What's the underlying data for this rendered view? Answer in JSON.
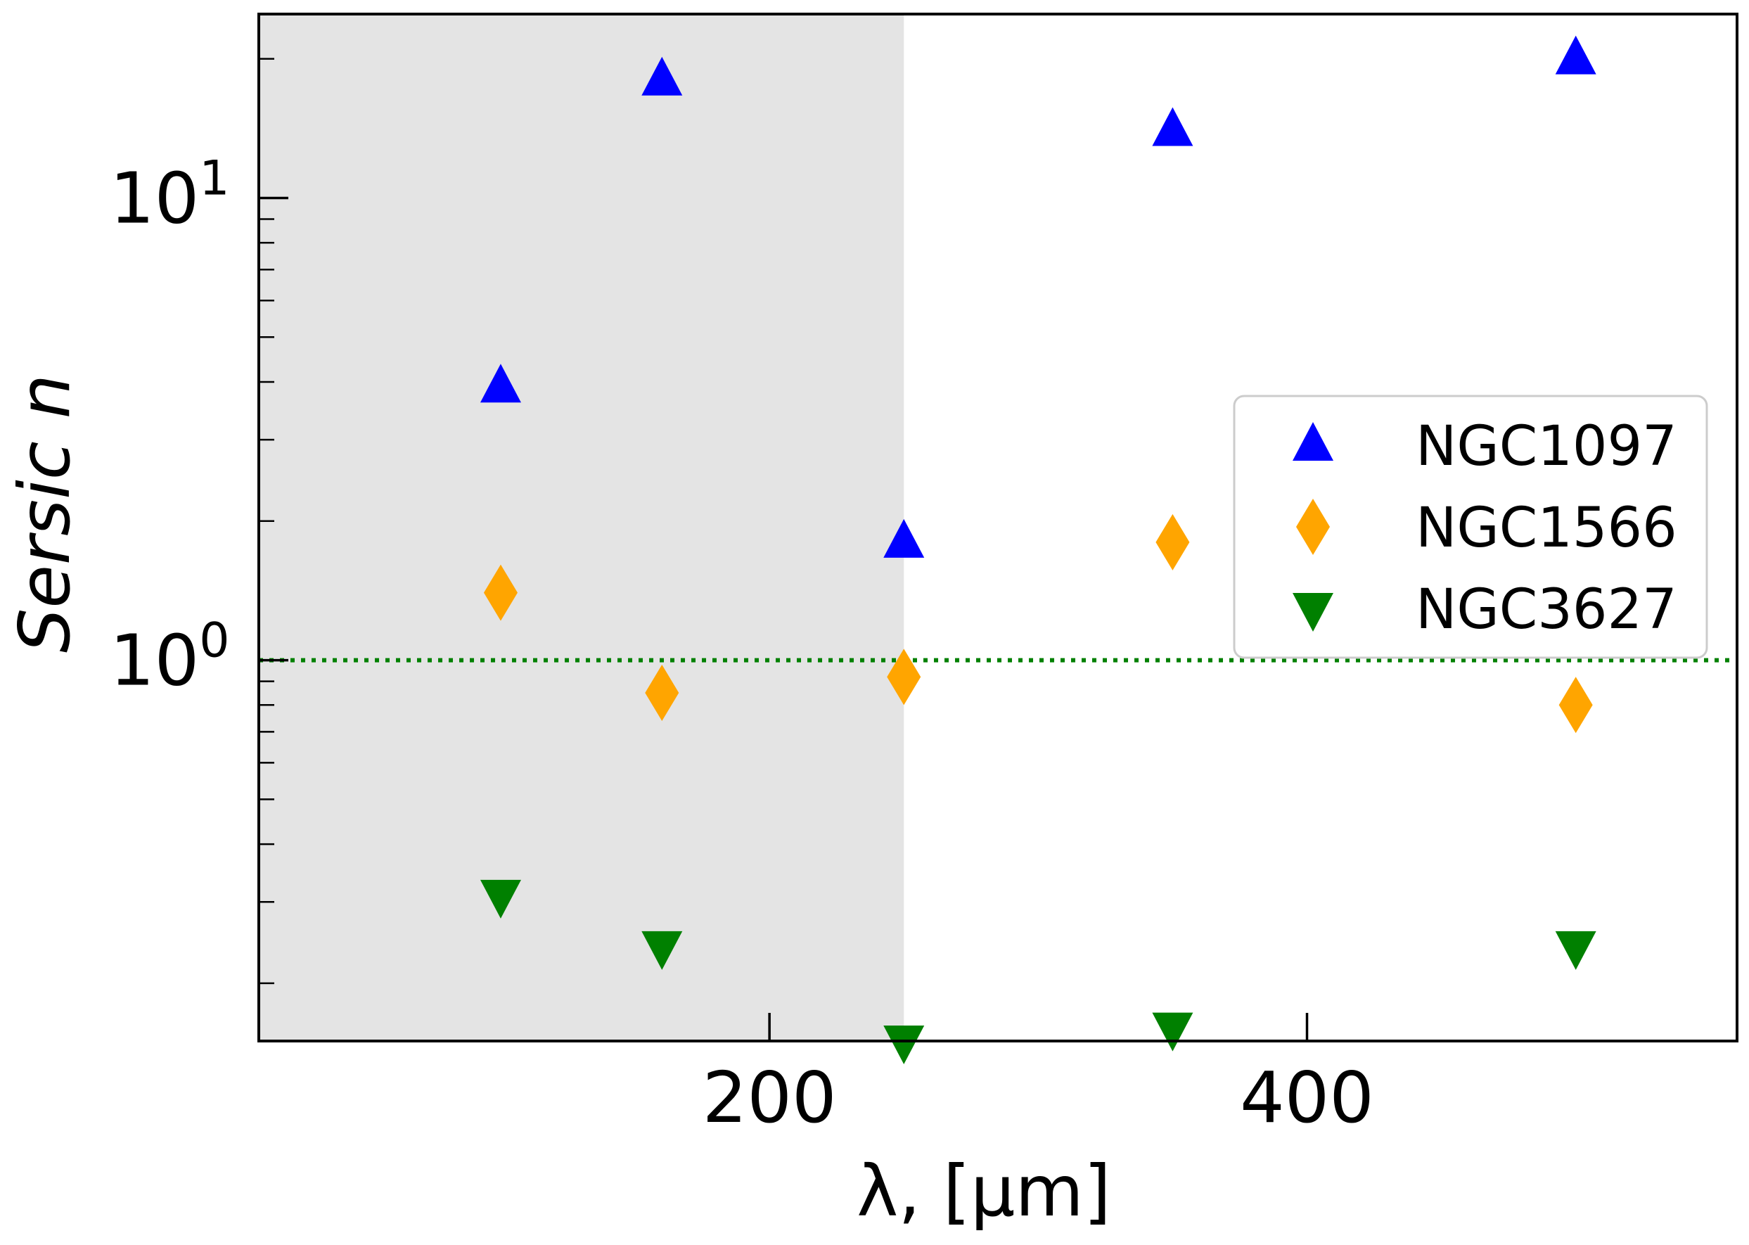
{
  "chart_data": {
    "type": "scatter",
    "title": "",
    "xlabel": "λ, [μm]",
    "ylabel": "Sersic n",
    "xlim": [
      10,
      560
    ],
    "ylim": [
      0.15,
      25
    ],
    "yscale": "log",
    "xticks": [
      200,
      400
    ],
    "xtick_labels": [
      "200",
      "400"
    ],
    "yticks": [
      {
        "value": 1,
        "base": "10",
        "exp": "0"
      },
      {
        "value": 10,
        "base": "10",
        "exp": "1"
      }
    ],
    "shaded_region": {
      "x_from": 10,
      "x_to": 250,
      "color": "#e4e4e4"
    },
    "reference_line": {
      "y": 1,
      "style": "dotted",
      "color": "#008000"
    },
    "legend_position": "center-right",
    "series": [
      {
        "name": "NGC1097",
        "marker": "triangle-up",
        "color": "#0000ff",
        "x": [
          100,
          160,
          250,
          350,
          500
        ],
        "y": [
          3.9,
          18.0,
          1.8,
          14.0,
          20.0
        ]
      },
      {
        "name": "NGC1566",
        "marker": "diamond",
        "color": "#ffa500",
        "x": [
          100,
          160,
          250,
          350,
          500
        ],
        "y": [
          1.4,
          0.85,
          0.92,
          1.8,
          0.8
        ]
      },
      {
        "name": "NGC3627",
        "marker": "triangle-down",
        "color": "#008000",
        "x": [
          100,
          160,
          250,
          350,
          500
        ],
        "y": [
          0.31,
          0.24,
          0.15,
          0.16,
          0.24
        ]
      }
    ]
  }
}
